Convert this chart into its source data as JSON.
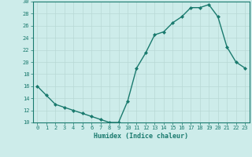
{
  "x": [
    0,
    1,
    2,
    3,
    4,
    5,
    6,
    7,
    8,
    9,
    10,
    11,
    12,
    13,
    14,
    15,
    16,
    17,
    18,
    19,
    20,
    21,
    22,
    23
  ],
  "y": [
    16,
    14.5,
    13,
    12.5,
    12,
    11.5,
    11,
    10.5,
    10,
    10,
    13.5,
    19,
    21.5,
    24.5,
    25,
    26.5,
    27.5,
    29,
    29,
    29.5,
    27.5,
    22.5,
    20,
    19
  ],
  "xlabel": "Humidex (Indice chaleur)",
  "xlim_min": -0.5,
  "xlim_max": 23.5,
  "ylim_min": 10,
  "ylim_max": 30,
  "yticks": [
    10,
    12,
    14,
    16,
    18,
    20,
    22,
    24,
    26,
    28,
    30
  ],
  "xticks": [
    0,
    1,
    2,
    3,
    4,
    5,
    6,
    7,
    8,
    9,
    10,
    11,
    12,
    13,
    14,
    15,
    16,
    17,
    18,
    19,
    20,
    21,
    22,
    23
  ],
  "line_color": "#1a7a6e",
  "marker": "D",
  "marker_size": 2.0,
  "linewidth": 1.0,
  "bg_color": "#cdecea",
  "grid_color": "#b8d8d5",
  "tick_label_color": "#1a7a6e",
  "xlabel_color": "#1a7a6e",
  "tick_fontsize": 5.0,
  "xlabel_fontsize": 6.0
}
